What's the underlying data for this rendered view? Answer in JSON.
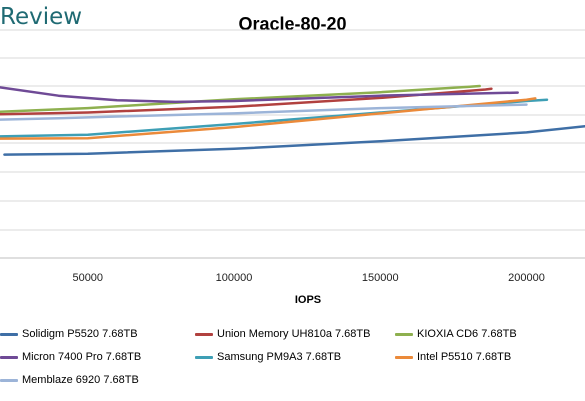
{
  "brand": {
    "text": "Review"
  },
  "chart_data": {
    "type": "line",
    "title": "Oracle-80-20",
    "xlabel": "IOPS",
    "ylabel": "",
    "xlim": [
      20000,
      220000
    ],
    "x_ticks": [
      50000,
      100000,
      150000,
      200000
    ],
    "x_tick_labels": [
      "50000",
      "100000",
      "150000",
      "200000"
    ],
    "grid": true,
    "legend_position": "bottom",
    "series": [
      {
        "name": "Solidigm P5520 7.68TB",
        "color": "#3f6fa6",
        "points": [
          [
            21500,
            0.1
          ],
          [
            50000,
            0.3
          ],
          [
            100000,
            1.4
          ],
          [
            150000,
            3.1
          ],
          [
            200000,
            5.1
          ],
          [
            220000,
            6.5
          ]
        ]
      },
      {
        "name": "Union Memory UH810a 7.68TB",
        "color": "#b1413f",
        "points": [
          [
            20000,
            9.2
          ],
          [
            50000,
            9.6
          ],
          [
            100000,
            10.9
          ],
          [
            150000,
            12.9
          ],
          [
            186000,
            14.8
          ],
          [
            188000,
            15.0
          ]
        ]
      },
      {
        "name": "KIOXIA CD6 7.68TB",
        "color": "#8eb04f",
        "points": [
          [
            20000,
            9.8
          ],
          [
            50000,
            10.6
          ],
          [
            100000,
            12.6
          ],
          [
            150000,
            14.2
          ],
          [
            180000,
            15.4
          ],
          [
            184000,
            15.6
          ]
        ]
      },
      {
        "name": "Micron 7400 Pro 7.68TB",
        "color": "#6f4a96",
        "points": [
          [
            20000,
            15.3
          ],
          [
            40000,
            13.4
          ],
          [
            60000,
            12.4
          ],
          [
            80000,
            12.0
          ],
          [
            100000,
            12.2
          ],
          [
            150000,
            13.4
          ],
          [
            197000,
            14.1
          ]
        ]
      },
      {
        "name": "Samsung PM9A3 7.68TB",
        "color": "#3e9fb5",
        "points": [
          [
            20000,
            4.2
          ],
          [
            50000,
            4.6
          ],
          [
            100000,
            7.0
          ],
          [
            150000,
            9.6
          ],
          [
            200000,
            12.2
          ],
          [
            207000,
            12.5
          ]
        ]
      },
      {
        "name": "Intel P5510 7.68TB",
        "color": "#eb8a3a",
        "points": [
          [
            20000,
            3.7
          ],
          [
            50000,
            3.8
          ],
          [
            100000,
            6.3
          ],
          [
            150000,
            9.4
          ],
          [
            200000,
            12.5
          ],
          [
            203000,
            12.8
          ]
        ]
      },
      {
        "name": "Memblaze 6920 7.68TB",
        "color": "#9cb4d8",
        "points": [
          [
            20000,
            8.0
          ],
          [
            40000,
            8.3
          ],
          [
            60000,
            8.7
          ],
          [
            100000,
            9.4
          ],
          [
            150000,
            10.6
          ],
          [
            200000,
            11.4
          ]
        ]
      }
    ]
  }
}
